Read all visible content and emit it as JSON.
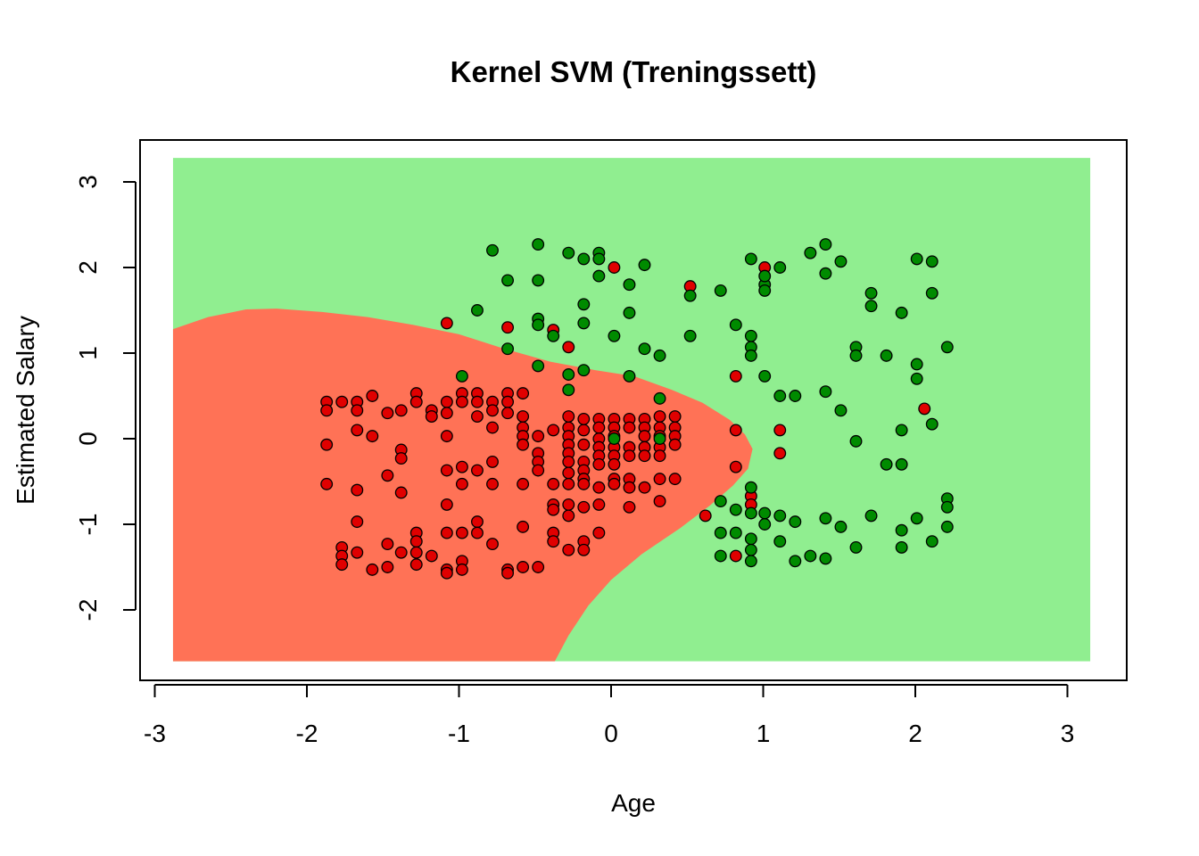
{
  "chart_data": {
    "type": "scatter",
    "title": "Kernel SVM (Treningssett)",
    "xlabel": "Age",
    "ylabel": "Estimated Salary",
    "xlim": [
      -3,
      3.3
    ],
    "ylim": [
      -2.6,
      3.3
    ],
    "x_ticks": [
      -3,
      -2,
      -1,
      0,
      1,
      2,
      3
    ],
    "y_ticks": [
      -2,
      -1,
      0,
      1,
      2,
      3
    ],
    "grid": false,
    "legend": "none",
    "colors": {
      "region_class_0": "#ff7256",
      "region_class_1": "#90ee90",
      "point_class_0": "#e00000",
      "point_class_1": "#008b00",
      "point_stroke": "#000000"
    },
    "decision_boundary": [
      [
        -2.88,
        1.28
      ],
      [
        -2.65,
        1.42
      ],
      [
        -2.4,
        1.51
      ],
      [
        -2.2,
        1.52
      ],
      [
        -1.9,
        1.48
      ],
      [
        -1.6,
        1.42
      ],
      [
        -1.3,
        1.33
      ],
      [
        -1.0,
        1.22
      ],
      [
        -0.7,
        1.05
      ],
      [
        -0.4,
        0.9
      ],
      [
        -0.1,
        0.8
      ],
      [
        0.15,
        0.73
      ],
      [
        0.4,
        0.57
      ],
      [
        0.6,
        0.42
      ],
      [
        0.78,
        0.22
      ],
      [
        0.88,
        0.05
      ],
      [
        0.93,
        -0.12
      ],
      [
        0.9,
        -0.35
      ],
      [
        0.8,
        -0.55
      ],
      [
        0.65,
        -0.78
      ],
      [
        0.45,
        -1.05
      ],
      [
        0.2,
        -1.35
      ],
      [
        0.0,
        -1.65
      ],
      [
        -0.15,
        -1.95
      ],
      [
        -0.28,
        -2.3
      ],
      [
        -0.37,
        -2.6
      ]
    ],
    "series": [
      {
        "name": "",
        "class": 0,
        "points": [
          [
            -1.87,
            0.43
          ],
          [
            -1.87,
            0.33
          ],
          [
            -1.77,
            0.43
          ],
          [
            -1.67,
            0.43
          ],
          [
            -1.67,
            0.33
          ],
          [
            -1.57,
            0.5
          ],
          [
            -1.47,
            0.3
          ],
          [
            -1.38,
            0.33
          ],
          [
            -1.28,
            0.53
          ],
          [
            -1.28,
            0.43
          ],
          [
            -1.18,
            0.33
          ],
          [
            -1.18,
            0.26
          ],
          [
            -1.08,
            0.43
          ],
          [
            -1.08,
            0.3
          ],
          [
            -0.98,
            0.53
          ],
          [
            -0.98,
            0.43
          ],
          [
            -0.88,
            0.53
          ],
          [
            -0.88,
            0.43
          ],
          [
            -0.78,
            0.43
          ],
          [
            -0.88,
            0.26
          ],
          [
            -0.78,
            0.33
          ],
          [
            -0.68,
            0.53
          ],
          [
            -0.68,
            0.43
          ],
          [
            -0.58,
            0.53
          ],
          [
            -0.68,
            0.3
          ],
          [
            -0.58,
            0.26
          ],
          [
            -1.67,
            0.1
          ],
          [
            -1.57,
            0.03
          ],
          [
            -1.87,
            -0.07
          ],
          [
            -1.08,
            0.03
          ],
          [
            -0.78,
            0.13
          ],
          [
            -0.58,
            0.13
          ],
          [
            -0.58,
            0.03
          ],
          [
            -0.48,
            0.03
          ],
          [
            -0.38,
            0.1
          ],
          [
            -1.38,
            -0.13
          ],
          [
            -1.38,
            -0.23
          ],
          [
            -0.78,
            -0.27
          ],
          [
            -0.98,
            -0.33
          ],
          [
            -0.88,
            -0.37
          ],
          [
            -0.58,
            -0.07
          ],
          [
            -0.48,
            -0.17
          ],
          [
            -0.48,
            -0.27
          ],
          [
            -0.48,
            -0.37
          ],
          [
            -0.28,
            0.13
          ],
          [
            -0.28,
            0.03
          ],
          [
            -0.28,
            -0.07
          ],
          [
            -0.28,
            -0.17
          ],
          [
            -0.28,
            -0.27
          ],
          [
            -0.18,
            0.1
          ],
          [
            -0.18,
            -0.07
          ],
          [
            -0.18,
            -0.27
          ],
          [
            -0.18,
            -0.37
          ],
          [
            -0.08,
            0.23
          ],
          [
            -0.08,
            0.13
          ],
          [
            -0.08,
            0.0
          ],
          [
            -0.08,
            -0.1
          ],
          [
            -0.08,
            -0.2
          ],
          [
            -0.08,
            -0.3
          ],
          [
            0.02,
            0.23
          ],
          [
            0.02,
            0.13
          ],
          [
            0.02,
            0.03
          ],
          [
            0.02,
            -0.1
          ],
          [
            0.02,
            -0.2
          ],
          [
            0.02,
            -0.3
          ],
          [
            0.12,
            0.23
          ],
          [
            0.12,
            0.13
          ],
          [
            0.12,
            -0.1
          ],
          [
            0.12,
            -0.2
          ],
          [
            0.22,
            0.23
          ],
          [
            0.22,
            0.13
          ],
          [
            0.22,
            0.03
          ],
          [
            0.22,
            -0.1
          ],
          [
            0.22,
            -0.2
          ],
          [
            0.32,
            0.26
          ],
          [
            0.32,
            0.13
          ],
          [
            0.32,
            0.03
          ],
          [
            0.32,
            -0.1
          ],
          [
            0.32,
            -0.2
          ],
          [
            0.42,
            0.26
          ],
          [
            0.42,
            0.13
          ],
          [
            0.42,
            0.03
          ],
          [
            0.42,
            -0.07
          ],
          [
            -0.28,
            0.26
          ],
          [
            -0.18,
            0.23
          ],
          [
            -0.28,
            -0.4
          ],
          [
            -0.18,
            -0.47
          ],
          [
            0.02,
            -0.47
          ],
          [
            0.12,
            -0.47
          ],
          [
            0.32,
            -0.47
          ],
          [
            0.42,
            -0.47
          ],
          [
            -1.87,
            -0.53
          ],
          [
            -1.67,
            -0.6
          ],
          [
            -1.47,
            -0.43
          ],
          [
            -1.38,
            -0.63
          ],
          [
            -1.08,
            -0.37
          ],
          [
            -0.98,
            -0.53
          ],
          [
            -0.78,
            -0.53
          ],
          [
            -0.58,
            -0.53
          ],
          [
            -0.38,
            -0.53
          ],
          [
            -0.28,
            -0.53
          ],
          [
            -0.18,
            -0.53
          ],
          [
            -0.08,
            -0.57
          ],
          [
            0.02,
            -0.53
          ],
          [
            0.12,
            -0.57
          ],
          [
            0.22,
            -0.57
          ],
          [
            0.32,
            -0.73
          ],
          [
            0.12,
            -0.8
          ],
          [
            -0.38,
            -0.77
          ],
          [
            -0.38,
            -0.83
          ],
          [
            -0.28,
            -0.77
          ],
          [
            -0.18,
            -0.8
          ],
          [
            -0.28,
            -0.9
          ],
          [
            -0.08,
            -0.77
          ],
          [
            -1.08,
            -0.77
          ],
          [
            -1.67,
            -0.97
          ],
          [
            -0.58,
            -1.03
          ],
          [
            -0.88,
            -0.97
          ],
          [
            -0.98,
            -1.1
          ],
          [
            -0.88,
            -1.1
          ],
          [
            -1.08,
            -1.1
          ],
          [
            -1.28,
            -1.1
          ],
          [
            -1.28,
            -1.2
          ],
          [
            -1.47,
            -1.23
          ],
          [
            -1.77,
            -1.27
          ],
          [
            -1.77,
            -1.37
          ],
          [
            -1.67,
            -1.33
          ],
          [
            -1.38,
            -1.33
          ],
          [
            -1.28,
            -1.33
          ],
          [
            -1.18,
            -1.37
          ],
          [
            -0.78,
            -1.23
          ],
          [
            -0.38,
            -1.1
          ],
          [
            -0.38,
            -1.2
          ],
          [
            -0.28,
            -1.3
          ],
          [
            -0.18,
            -1.2
          ],
          [
            -0.08,
            -1.1
          ],
          [
            -0.18,
            -1.3
          ],
          [
            -1.77,
            -1.47
          ],
          [
            -1.57,
            -1.53
          ],
          [
            -1.47,
            -1.5
          ],
          [
            -1.28,
            -1.47
          ],
          [
            -1.08,
            -1.53
          ],
          [
            -1.08,
            -1.57
          ],
          [
            -0.98,
            -1.43
          ],
          [
            -0.98,
            -1.53
          ],
          [
            -0.68,
            -1.53
          ],
          [
            -0.68,
            -1.57
          ],
          [
            -0.58,
            -1.5
          ],
          [
            -0.48,
            -1.5
          ],
          [
            -1.08,
            1.35
          ],
          [
            -0.68,
            1.3
          ],
          [
            -0.38,
            1.27
          ],
          [
            -0.28,
            1.07
          ],
          [
            0.52,
            1.78
          ],
          [
            0.02,
            2.0
          ],
          [
            0.62,
            -0.9
          ],
          [
            0.82,
            0.73
          ],
          [
            0.82,
            0.1
          ],
          [
            0.82,
            -0.33
          ],
          [
            0.82,
            -1.37
          ],
          [
            0.92,
            -0.67
          ],
          [
            0.92,
            -0.77
          ],
          [
            1.01,
            2.0
          ],
          [
            1.11,
            0.1
          ],
          [
            1.11,
            -0.17
          ],
          [
            2.06,
            0.35
          ]
        ]
      },
      {
        "name": "",
        "class": 1,
        "points": [
          [
            -0.98,
            0.73
          ],
          [
            -0.88,
            1.5
          ],
          [
            -0.78,
            2.2
          ],
          [
            -0.68,
            1.85
          ],
          [
            -0.68,
            1.05
          ],
          [
            -0.48,
            2.27
          ],
          [
            -0.48,
            1.85
          ],
          [
            -0.48,
            1.4
          ],
          [
            -0.48,
            1.33
          ],
          [
            -0.48,
            0.85
          ],
          [
            -0.38,
            1.2
          ],
          [
            -0.28,
            2.17
          ],
          [
            -0.18,
            2.1
          ],
          [
            -0.18,
            1.57
          ],
          [
            -0.18,
            1.35
          ],
          [
            -0.28,
            0.57
          ],
          [
            -0.18,
            0.8
          ],
          [
            -0.28,
            0.75
          ],
          [
            -0.08,
            2.17
          ],
          [
            -0.08,
            2.1
          ],
          [
            -0.08,
            1.9
          ],
          [
            0.02,
            1.2
          ],
          [
            0.12,
            1.8
          ],
          [
            0.12,
            1.47
          ],
          [
            0.22,
            2.03
          ],
          [
            0.22,
            1.05
          ],
          [
            0.12,
            0.73
          ],
          [
            0.32,
            0.97
          ],
          [
            0.32,
            0.47
          ],
          [
            0.52,
            1.2
          ],
          [
            0.52,
            1.67
          ],
          [
            0.72,
            1.73
          ],
          [
            0.82,
            1.33
          ],
          [
            0.92,
            1.2
          ],
          [
            0.92,
            1.07
          ],
          [
            0.92,
            0.97
          ],
          [
            0.92,
            2.1
          ],
          [
            1.01,
            1.8
          ],
          [
            1.01,
            1.9
          ],
          [
            1.01,
            1.73
          ],
          [
            1.01,
            0.73
          ],
          [
            1.11,
            2.0
          ],
          [
            1.21,
            0.5
          ],
          [
            1.11,
            0.5
          ],
          [
            1.31,
            2.17
          ],
          [
            1.41,
            2.27
          ],
          [
            1.41,
            1.93
          ],
          [
            1.51,
            2.07
          ],
          [
            1.41,
            0.55
          ],
          [
            1.51,
            0.33
          ],
          [
            1.61,
            1.07
          ],
          [
            1.61,
            0.97
          ],
          [
            1.61,
            -0.03
          ],
          [
            1.71,
            1.7
          ],
          [
            1.71,
            1.55
          ],
          [
            1.81,
            0.97
          ],
          [
            1.91,
            1.47
          ],
          [
            1.81,
            -0.3
          ],
          [
            1.91,
            -0.3
          ],
          [
            1.91,
            0.1
          ],
          [
            2.01,
            2.1
          ],
          [
            2.01,
            0.87
          ],
          [
            2.01,
            0.7
          ],
          [
            2.11,
            2.07
          ],
          [
            2.11,
            1.7
          ],
          [
            2.11,
            0.17
          ],
          [
            2.21,
            1.07
          ],
          [
            2.21,
            -0.7
          ],
          [
            2.21,
            -0.8
          ],
          [
            2.21,
            -1.03
          ],
          [
            0.72,
            -0.73
          ],
          [
            0.72,
            -1.1
          ],
          [
            0.72,
            -1.37
          ],
          [
            0.82,
            -0.83
          ],
          [
            0.82,
            -1.1
          ],
          [
            0.92,
            -0.57
          ],
          [
            0.92,
            -0.87
          ],
          [
            0.92,
            -1.17
          ],
          [
            0.92,
            -1.3
          ],
          [
            0.92,
            -1.43
          ],
          [
            1.01,
            -0.87
          ],
          [
            1.01,
            -1.0
          ],
          [
            1.11,
            -0.9
          ],
          [
            1.11,
            -1.2
          ],
          [
            1.21,
            -0.97
          ],
          [
            1.21,
            -1.43
          ],
          [
            1.31,
            -1.37
          ],
          [
            1.41,
            -0.93
          ],
          [
            1.41,
            -1.4
          ],
          [
            1.51,
            -1.03
          ],
          [
            1.61,
            -1.27
          ],
          [
            1.71,
            -0.9
          ],
          [
            1.91,
            -1.07
          ],
          [
            1.91,
            -1.27
          ],
          [
            2.01,
            -0.93
          ],
          [
            2.11,
            -1.2
          ],
          [
            0.02,
            0.0
          ],
          [
            0.32,
            0.0
          ]
        ]
      }
    ]
  }
}
